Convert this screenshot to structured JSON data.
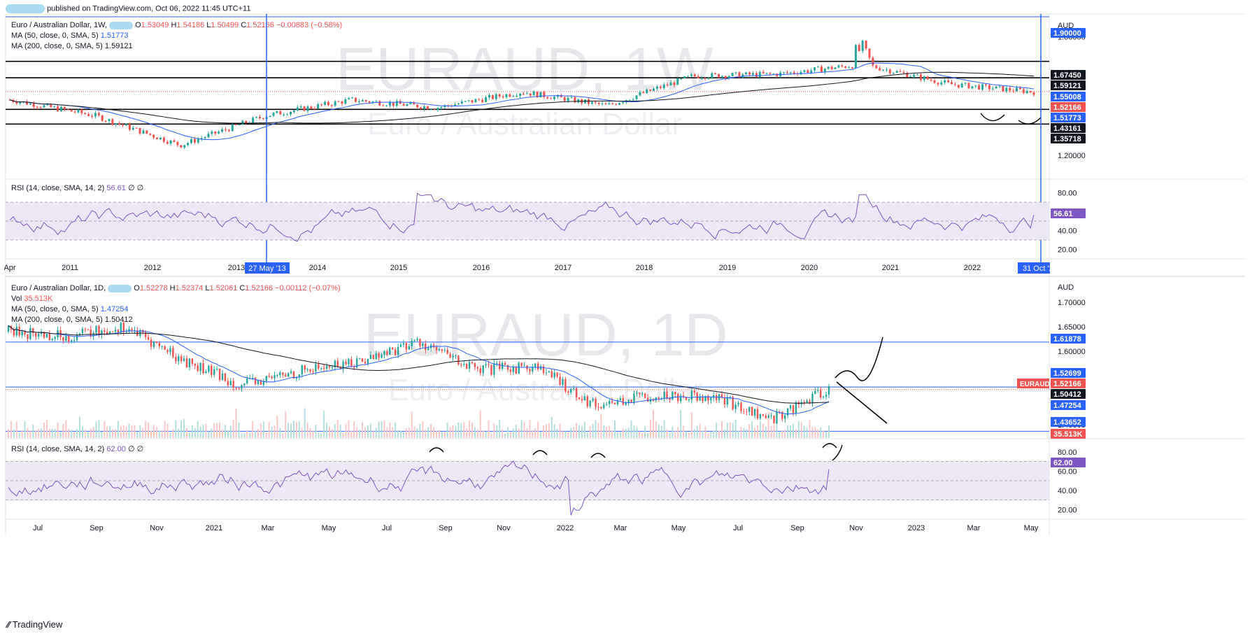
{
  "header": {
    "published_text": "published on TradingView.com, Oct 06, 2022 11:45 UTC+11"
  },
  "footer": {
    "brand": "TradingView"
  },
  "colors": {
    "up": "#26a69a",
    "down": "#ef5350",
    "ma50": "#2962ff",
    "ma200": "#131722",
    "rsi": "#7e57c2",
    "rsi_band": "#ede7f6",
    "blue_line": "#2962ff",
    "text": "#131722"
  },
  "pane_weekly": {
    "symbol": "Euro / Australian Dollar, 1W,",
    "o_label": "O",
    "o_value": "1.53049",
    "h_label": "H",
    "h_value": "1.54186",
    "l_label": "L",
    "l_value": "1.50499",
    "c_label": "C",
    "c_value": "1.52166",
    "change": "−0.00883 (−0.58%)",
    "ma50_label": "MA (50, close, 0, SMA, 5)",
    "ma50_value": "1.51773",
    "ma200_label": "MA (200, close, 0, SMA, 5)",
    "ma200_value": "1.59121",
    "watermark_title": "EURAUD, 1W",
    "watermark_sub": "Euro / Australian Dollar",
    "currency": "AUD",
    "price_ticks": [
      "1.80000",
      "1.20000"
    ],
    "price_tags": [
      {
        "label": "1.90000",
        "bg": "#2962ff",
        "fg": "#ffffff"
      },
      {
        "label": "1.67450",
        "bg": "#131722",
        "fg": "#ffffff"
      },
      {
        "label": "1.59121",
        "bg": "#131722",
        "fg": "#ffffff"
      },
      {
        "label": "1.55008",
        "bg": "#2962ff",
        "fg": "#ffffff"
      },
      {
        "label": "1.52166",
        "bg": "#ef5350",
        "fg": "#ffffff"
      },
      {
        "label": "1.51773",
        "bg": "#2962ff",
        "fg": "#ffffff"
      },
      {
        "label": "1.43161",
        "bg": "#131722",
        "fg": "#ffffff"
      },
      {
        "label": "1.35718",
        "bg": "#131722",
        "fg": "#ffffff"
      }
    ],
    "rsi_label": "RSI (14, close, SMA, 14, 2)",
    "rsi_value": "56.61",
    "rsi_extra": "∅ ∅",
    "rsi_ticks": [
      "80.00",
      "60.00",
      "40.00",
      "20.00"
    ],
    "rsi_tag": "56.61",
    "time_labels": [
      "Apr",
      "2011",
      "2012",
      "2013",
      "2014",
      "2015",
      "2016",
      "2017",
      "2018",
      "2019",
      "2020",
      "2021",
      "2022"
    ],
    "cursor_date": "27 May '13",
    "cursor_date_right": "31 Oct '2"
  },
  "pane_daily": {
    "symbol": "Euro / Australian Dollar, 1D,",
    "o_label": "O",
    "o_value": "1.52278",
    "h_label": "H",
    "h_value": "1.52374",
    "l_label": "L",
    "l_value": "1.52061",
    "c_label": "C",
    "c_value": "1.52166",
    "change": "−0.00112 (−0.07%)",
    "vol_label": "Vol",
    "vol_value": "35.513K",
    "ma50_label": "MA (50, close, 0, SMA, 5)",
    "ma50_value": "1.47254",
    "ma200_label": "MA (200, close, 0, SMA, 5)",
    "ma200_value": "1.50412",
    "watermark_title": "EURAUD, 1D",
    "watermark_sub": "Euro / Australian Dollar",
    "currency": "AUD",
    "price_ticks": [
      "1.70000",
      "1.65000",
      "1.60000",
      "1.45000"
    ],
    "price_tags": [
      {
        "label": "1.61878",
        "bg": "#2962ff",
        "fg": "#ffffff"
      },
      {
        "label": "1.52699",
        "bg": "#2962ff",
        "fg": "#ffffff"
      },
      {
        "label": "1.52166",
        "bg": "#ef5350",
        "fg": "#ffffff"
      },
      {
        "label": "1.50412",
        "bg": "#131722",
        "fg": "#ffffff"
      },
      {
        "label": "1.47254",
        "bg": "#2962ff",
        "fg": "#ffffff"
      },
      {
        "label": "1.43652",
        "bg": "#2962ff",
        "fg": "#ffffff"
      },
      {
        "label": "35.513K",
        "bg": "#ef5350",
        "fg": "#ffffff"
      }
    ],
    "symbol_tag": "EURAUD",
    "rsi_label": "RSI (14, close, SMA, 14, 2)",
    "rsi_value": "62.00",
    "rsi_extra": "∅ ∅",
    "rsi_ticks": [
      "80.00",
      "60.00",
      "40.00",
      "20.00"
    ],
    "rsi_tag": "62.00",
    "time_labels": [
      "Jul",
      "Sep",
      "Nov",
      "2021",
      "Mar",
      "May",
      "Jul",
      "Sep",
      "Nov",
      "2022",
      "Mar",
      "May",
      "Jul",
      "Sep",
      "Nov",
      "2023",
      "Mar",
      "May"
    ]
  },
  "chart_data": [
    {
      "type": "candlestick",
      "title": "EURAUD, 1W",
      "y_unit": "AUD",
      "ylim": [
        1.1,
        1.9
      ],
      "x_range": [
        "Apr 2010",
        "Oct 2022"
      ],
      "series": [
        {
          "name": "price (approx. weekly closes)",
          "x": [
            "2010",
            "2011",
            "2012",
            "2013",
            "2014",
            "2015",
            "2016",
            "2017",
            "2018",
            "2019",
            "2020",
            "2021",
            "2022"
          ],
          "values": [
            1.48,
            1.4,
            1.25,
            1.4,
            1.48,
            1.44,
            1.52,
            1.45,
            1.6,
            1.61,
            1.66,
            1.56,
            1.52
          ]
        },
        {
          "name": "MA (50, close, 0, SMA, 5)",
          "last": 1.51773
        },
        {
          "name": "MA (200, close, 0, SMA, 5)",
          "last": 1.59121
        }
      ],
      "horizontal_levels": [
        1.9,
        1.6745,
        1.59121,
        1.43161,
        1.35718
      ],
      "rsi": {
        "label": "RSI (14, close, SMA, 14, 2)",
        "last": 56.61,
        "bands": [
          70,
          50,
          30
        ]
      }
    },
    {
      "type": "candlestick",
      "title": "EURAUD, 1D",
      "y_unit": "AUD",
      "ylim": [
        1.4,
        1.72
      ],
      "x_range": [
        "Jun 2020",
        "May 2023"
      ],
      "series": [
        {
          "name": "price (approx. closes)",
          "x": [
            "Jul 2020",
            "Sep 2020",
            "Nov 2020",
            "2021",
            "Mar 2021",
            "May 2021",
            "Jul 2021",
            "Sep 2021",
            "Nov 2021",
            "2022",
            "Mar 2022",
            "May 2022",
            "Jul 2022",
            "Sep 2022",
            "Oct 2022"
          ],
          "values": [
            1.64,
            1.63,
            1.65,
            1.58,
            1.53,
            1.56,
            1.58,
            1.62,
            1.56,
            1.57,
            1.49,
            1.51,
            1.51,
            1.46,
            1.52166
          ]
        },
        {
          "name": "MA (50, close, 0, SMA, 5)",
          "last": 1.47254
        },
        {
          "name": "MA (200, close, 0, SMA, 5)",
          "last": 1.50412
        },
        {
          "name": "Vol",
          "last": "35.513K"
        }
      ],
      "horizontal_levels": [
        1.61878,
        1.52699,
        1.43652
      ],
      "rsi": {
        "label": "RSI (14, close, SMA, 14, 2)",
        "last": 62.0,
        "bands": [
          70,
          50,
          30
        ]
      }
    }
  ]
}
